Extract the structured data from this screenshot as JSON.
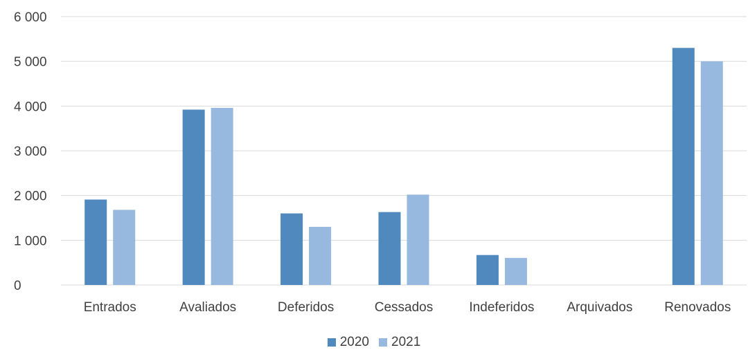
{
  "chart_data": {
    "type": "bar",
    "title": "",
    "xlabel": "",
    "ylabel": "",
    "categories": [
      "Entrados",
      "Avaliados",
      "Deferidos",
      "Cessados",
      "Indeferidos",
      "Arquivados",
      "Renovados"
    ],
    "series": [
      {
        "name": "2020",
        "color": "#4f89bd",
        "values": [
          1910,
          3920,
          1600,
          1630,
          670,
          0,
          5300
        ]
      },
      {
        "name": "2021",
        "color": "#98b9df",
        "values": [
          1680,
          3960,
          1300,
          2020,
          605,
          0,
          5000
        ]
      }
    ],
    "yticks": [
      "0",
      "1 000",
      "2 000",
      "3 000",
      "4 000",
      "5 000",
      "6 000"
    ],
    "ylim": [
      0,
      6000
    ],
    "grid": true,
    "gridline_color": "#d9d9d9",
    "legend_position": "bottom"
  }
}
